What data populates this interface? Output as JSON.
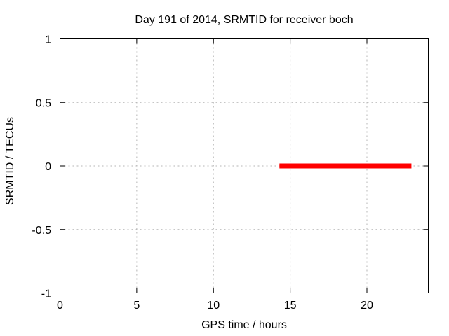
{
  "chart_data": {
    "type": "line",
    "title": "Day 191 of 2014, SRMTID for receiver boch",
    "xlabel": "GPS time / hours",
    "ylabel": "SRMTID / TECUs",
    "xlim": [
      0,
      24
    ],
    "ylim": [
      -1,
      1
    ],
    "xticks": [
      {
        "value": 0,
        "label": "0"
      },
      {
        "value": 5,
        "label": "5"
      },
      {
        "value": 10,
        "label": "10"
      },
      {
        "value": 15,
        "label": "15"
      },
      {
        "value": 20,
        "label": "20"
      }
    ],
    "yticks": [
      {
        "value": -1,
        "label": "-1"
      },
      {
        "value": -0.5,
        "label": "-0.5"
      },
      {
        "value": 0,
        "label": "0"
      },
      {
        "value": 0.5,
        "label": "0.5"
      },
      {
        "value": 1,
        "label": "1"
      }
    ],
    "grid": true,
    "legend": "none",
    "series": [
      {
        "name": "SRMTID",
        "color": "#ff0000",
        "line_width": 7,
        "points": [
          [
            14.3,
            0.0
          ],
          [
            22.9,
            0.0
          ]
        ]
      }
    ],
    "colors": {
      "grid": "#b4b4b4",
      "axis": "#000000",
      "background": "#ffffff"
    }
  }
}
